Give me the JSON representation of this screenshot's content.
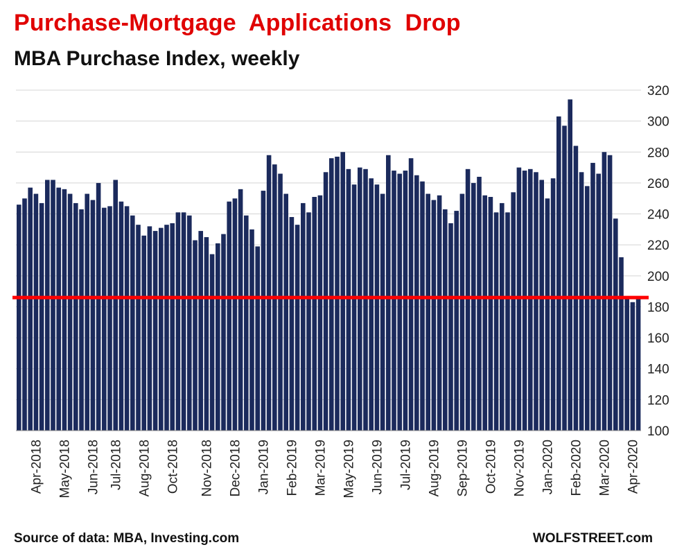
{
  "colors": {
    "title": "#e00000",
    "bar": "#1b2a5c",
    "grid": "#d4d4d4",
    "reference_line": "#ff0000",
    "text": "#111111"
  },
  "header": {
    "title": "Purchase-Mortgage  Applications  Drop",
    "subtitle": "MBA Purchase Index, weekly"
  },
  "footer": {
    "source": "Source of data: MBA, Investing.com",
    "brand": "WOLFSTREET.com"
  },
  "chart_data": {
    "type": "bar",
    "ylim": [
      100,
      320
    ],
    "yticks": [
      100,
      120,
      140,
      160,
      180,
      200,
      220,
      240,
      260,
      280,
      300,
      320
    ],
    "grid": true,
    "reference_line": 186,
    "values": [
      246,
      250,
      257,
      253,
      247,
      262,
      262,
      257,
      256,
      253,
      247,
      243,
      253,
      249,
      260,
      244,
      245,
      262,
      248,
      245,
      239,
      233,
      226,
      232,
      229,
      231,
      233,
      234,
      241,
      241,
      239,
      223,
      229,
      225,
      214,
      221,
      227,
      248,
      250,
      256,
      239,
      230,
      219,
      255,
      278,
      272,
      266,
      253,
      238,
      233,
      247,
      241,
      251,
      252,
      267,
      276,
      277,
      280,
      269,
      259,
      270,
      269,
      263,
      259,
      253,
      278,
      268,
      266,
      268,
      276,
      265,
      261,
      253,
      249,
      252,
      243,
      234,
      242,
      253,
      269,
      260,
      264,
      252,
      251,
      241,
      247,
      241,
      254,
      270,
      268,
      269,
      267,
      262,
      250,
      263,
      303,
      297,
      314,
      284,
      267,
      258,
      273,
      266,
      280,
      278,
      237,
      212,
      185,
      183,
      185
    ],
    "x_tick_labels": [
      {
        "label": "Apr-2018",
        "index": 3
      },
      {
        "label": "May-2018",
        "index": 8
      },
      {
        "label": "Jun-2018",
        "index": 13
      },
      {
        "label": "Jul-2018",
        "index": 17
      },
      {
        "label": "Aug-2018",
        "index": 22
      },
      {
        "label": "Oct-2018",
        "index": 27
      },
      {
        "label": "Nov-2018",
        "index": 33
      },
      {
        "label": "Dec-2018",
        "index": 38
      },
      {
        "label": "Jan-2019",
        "index": 43
      },
      {
        "label": "Feb-2019",
        "index": 48
      },
      {
        "label": "Mar-2019",
        "index": 53
      },
      {
        "label": "May-2019",
        "index": 58
      },
      {
        "label": "Jun-2019",
        "index": 63
      },
      {
        "label": "Jul-2019",
        "index": 68
      },
      {
        "label": "Aug-2019",
        "index": 73
      },
      {
        "label": "Sep-2019",
        "index": 78
      },
      {
        "label": "Oct-2019",
        "index": 83
      },
      {
        "label": "Nov-2019",
        "index": 88
      },
      {
        "label": "Jan-2020",
        "index": 93
      },
      {
        "label": "Feb-2020",
        "index": 98
      },
      {
        "label": "Mar-2020",
        "index": 103
      },
      {
        "label": "Apr-2020",
        "index": 108
      }
    ]
  }
}
